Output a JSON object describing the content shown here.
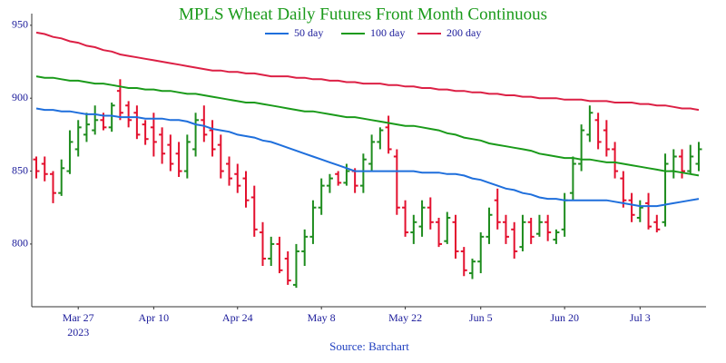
{
  "chart_data": {
    "type": "ohlc",
    "title": "MPLS Wheat Daily Futures Front Month Continuous",
    "source": "Source: Barchart",
    "x": [
      "2023-03-20",
      "2023-03-21",
      "2023-03-22",
      "2023-03-23",
      "2023-03-24",
      "2023-03-27",
      "2023-03-28",
      "2023-03-29",
      "2023-03-30",
      "2023-03-31",
      "2023-04-03",
      "2023-04-04",
      "2023-04-05",
      "2023-04-06",
      "2023-04-10",
      "2023-04-11",
      "2023-04-12",
      "2023-04-13",
      "2023-04-14",
      "2023-04-17",
      "2023-04-18",
      "2023-04-19",
      "2023-04-20",
      "2023-04-21",
      "2023-04-24",
      "2023-04-25",
      "2023-04-26",
      "2023-04-27",
      "2023-04-28",
      "2023-05-01",
      "2023-05-02",
      "2023-05-03",
      "2023-05-04",
      "2023-05-05",
      "2023-05-08",
      "2023-05-09",
      "2023-05-10",
      "2023-05-11",
      "2023-05-12",
      "2023-05-15",
      "2023-05-16",
      "2023-05-17",
      "2023-05-18",
      "2023-05-19",
      "2023-05-22",
      "2023-05-23",
      "2023-05-24",
      "2023-05-25",
      "2023-05-26",
      "2023-05-30",
      "2023-05-31",
      "2023-06-01",
      "2023-06-02",
      "2023-06-05",
      "2023-06-06",
      "2023-06-07",
      "2023-06-08",
      "2023-06-09",
      "2023-06-12",
      "2023-06-13",
      "2023-06-14",
      "2023-06-15",
      "2023-06-16",
      "2023-06-20",
      "2023-06-21",
      "2023-06-22",
      "2023-06-23",
      "2023-06-26",
      "2023-06-27",
      "2023-06-28",
      "2023-06-29",
      "2023-06-30",
      "2023-07-03",
      "2023-07-05",
      "2023-07-06",
      "2023-07-07",
      "2023-07-10",
      "2023-07-11",
      "2023-07-12",
      "2023-07-13"
    ],
    "ohlc": {
      "up_color": "#1e8c1e",
      "down_color": "#e3102e",
      "open": [
        858,
        855,
        848,
        835,
        850,
        865,
        875,
        878,
        885,
        880,
        905,
        895,
        890,
        882,
        880,
        875,
        868,
        862,
        850,
        865,
        885,
        878,
        868,
        855,
        848,
        845,
        832,
        808,
        790,
        800,
        790,
        772,
        795,
        805,
        825,
        840,
        848,
        842,
        850,
        840,
        855,
        870,
        880,
        860,
        825,
        808,
        812,
        825,
        815,
        802,
        815,
        795,
        780,
        788,
        805,
        830,
        815,
        810,
        798,
        815,
        807,
        815,
        803,
        810,
        835,
        855,
        875,
        885,
        878,
        865,
        845,
        830,
        818,
        828,
        815,
        815,
        850,
        860,
        850,
        855
      ],
      "high": [
        860,
        860,
        850,
        858,
        878,
        885,
        890,
        895,
        890,
        897,
        913,
        898,
        895,
        885,
        890,
        880,
        875,
        870,
        875,
        890,
        895,
        885,
        875,
        860,
        855,
        850,
        840,
        815,
        805,
        805,
        795,
        800,
        810,
        830,
        845,
        848,
        850,
        855,
        852,
        862,
        875,
        880,
        888,
        865,
        830,
        820,
        830,
        832,
        818,
        822,
        820,
        798,
        790,
        808,
        825,
        838,
        820,
        815,
        820,
        818,
        820,
        820,
        810,
        835,
        860,
        882,
        895,
        890,
        885,
        870,
        850,
        835,
        830,
        835,
        820,
        862,
        865,
        865,
        868,
        870
      ],
      "low": [
        845,
        843,
        828,
        833,
        848,
        860,
        870,
        875,
        878,
        877,
        885,
        880,
        872,
        868,
        860,
        855,
        850,
        846,
        845,
        860,
        870,
        860,
        845,
        840,
        835,
        825,
        805,
        785,
        785,
        780,
        772,
        770,
        785,
        800,
        820,
        835,
        840,
        840,
        835,
        835,
        850,
        865,
        862,
        820,
        805,
        800,
        805,
        810,
        798,
        800,
        790,
        778,
        776,
        780,
        800,
        810,
        800,
        790,
        795,
        800,
        805,
        802,
        800,
        805,
        830,
        850,
        870,
        865,
        860,
        845,
        825,
        815,
        815,
        810,
        808,
        812,
        845,
        845,
        848,
        850
      ],
      "close": [
        850,
        848,
        835,
        852,
        870,
        880,
        882,
        885,
        880,
        895,
        890,
        885,
        875,
        872,
        870,
        862,
        855,
        850,
        870,
        885,
        875,
        865,
        850,
        845,
        840,
        830,
        810,
        790,
        800,
        782,
        775,
        795,
        805,
        825,
        840,
        845,
        842,
        850,
        840,
        858,
        870,
        878,
        865,
        825,
        808,
        815,
        825,
        815,
        800,
        818,
        795,
        782,
        788,
        805,
        820,
        815,
        805,
        795,
        815,
        805,
        815,
        808,
        808,
        830,
        855,
        878,
        890,
        870,
        865,
        850,
        830,
        820,
        825,
        812,
        810,
        855,
        860,
        850,
        860,
        865
      ]
    },
    "series": [
      {
        "name": "50 day",
        "color": "#1f6fdc",
        "values": [
          893,
          892,
          892,
          891,
          891,
          890,
          889,
          889,
          888,
          888,
          887,
          887,
          887,
          886,
          886,
          886,
          885,
          885,
          884,
          882,
          881,
          879,
          878,
          877,
          875,
          874,
          873,
          871,
          870,
          868,
          866,
          864,
          862,
          860,
          858,
          856,
          854,
          852,
          850,
          850,
          850,
          850,
          850,
          850,
          850,
          850,
          849,
          849,
          849,
          848,
          848,
          847,
          845,
          844,
          842,
          840,
          838,
          837,
          835,
          834,
          832,
          831,
          831,
          830,
          830,
          830,
          830,
          830,
          830,
          829,
          828,
          827,
          826,
          826,
          826,
          827,
          828,
          829,
          830,
          831
        ]
      },
      {
        "name": "100 day",
        "color": "#1a9a1a",
        "values": [
          915,
          914,
          914,
          913,
          912,
          912,
          911,
          910,
          910,
          909,
          908,
          907,
          907,
          906,
          906,
          905,
          905,
          904,
          903,
          903,
          902,
          901,
          900,
          899,
          898,
          897,
          897,
          896,
          895,
          894,
          893,
          892,
          891,
          891,
          890,
          889,
          888,
          887,
          887,
          886,
          885,
          884,
          883,
          882,
          881,
          881,
          880,
          879,
          878,
          876,
          875,
          873,
          872,
          871,
          869,
          868,
          867,
          866,
          865,
          864,
          862,
          861,
          860,
          859,
          859,
          858,
          858,
          857,
          856,
          856,
          855,
          854,
          853,
          852,
          851,
          850,
          850,
          849,
          848,
          847
        ]
      },
      {
        "name": "200 day",
        "color": "#dc2045",
        "values": [
          945,
          944,
          942,
          941,
          939,
          938,
          936,
          935,
          933,
          932,
          930,
          929,
          928,
          927,
          926,
          925,
          924,
          923,
          922,
          921,
          920,
          919,
          919,
          918,
          918,
          917,
          917,
          916,
          915,
          915,
          915,
          914,
          914,
          913,
          913,
          912,
          912,
          911,
          911,
          910,
          910,
          910,
          909,
          909,
          908,
          908,
          907,
          907,
          906,
          906,
          905,
          905,
          904,
          904,
          903,
          903,
          902,
          902,
          901,
          901,
          900,
          900,
          900,
          899,
          899,
          899,
          898,
          898,
          898,
          897,
          897,
          897,
          896,
          896,
          895,
          895,
          894,
          893,
          893,
          892
        ]
      }
    ],
    "ylim": [
      757,
      958
    ],
    "yticks": [
      800,
      850,
      900,
      950
    ],
    "xticks": [
      {
        "value": "2023-03-27",
        "label": "Mar 27"
      },
      {
        "value": "2023-04-10",
        "label": "Apr 10"
      },
      {
        "value": "2023-04-24",
        "label": "Apr 24"
      },
      {
        "value": "2023-05-08",
        "label": "May 8"
      },
      {
        "value": "2023-05-22",
        "label": "May 22"
      },
      {
        "value": "2023-06-05",
        "label": "Jun 5"
      },
      {
        "value": "2023-06-20",
        "label": "Jun 20"
      },
      {
        "value": "2023-07-03",
        "label": "Jul 3"
      }
    ],
    "x_year": {
      "value": "2023-03-27",
      "label": "2023"
    },
    "grid": false
  }
}
